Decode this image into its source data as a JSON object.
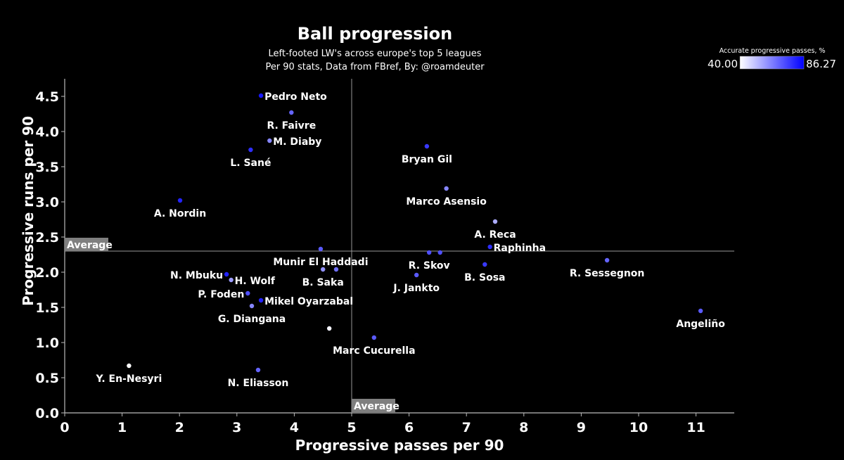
{
  "chart_data": {
    "type": "scatter",
    "title": "Ball progression",
    "subtitle_lines": [
      "Left-footed LW's across europe's top 5 leagues",
      "Per 90 stats, Data from FBref, By: @roamdeuter"
    ],
    "xlabel": "Progressive passes per 90",
    "ylabel": "Progressive runs per 90",
    "xlim": [
      -0.1,
      11.7
    ],
    "ylim": [
      -0.1,
      4.75
    ],
    "xticks": [
      "0",
      "1",
      "2",
      "3",
      "4",
      "5",
      "6",
      "7",
      "8",
      "9",
      "10",
      "11"
    ],
    "yticks": [
      "0.0",
      "0.5",
      "1.0",
      "1.5",
      "2.0",
      "2.5",
      "3.0",
      "3.5",
      "4.0",
      "4.5"
    ],
    "grid": false,
    "averages": {
      "x": 5.0,
      "y": 2.3,
      "label": "Average"
    },
    "colorbar": {
      "label": "Accurate progressive passes, %",
      "min": 40.0,
      "max": 86.27,
      "min_label": "40.00",
      "max_label": "86.27",
      "min_color": "#ffffff",
      "max_color": "#0000ff",
      "placement": "top-right"
    },
    "points": [
      {
        "name": "Pedro Neto",
        "x": 3.42,
        "y": 4.51,
        "c": 82,
        "label": "right"
      },
      {
        "name": "R. Faivre",
        "x": 3.95,
        "y": 4.27,
        "c": 68,
        "label": "below"
      },
      {
        "name": "M. Diaby",
        "x": 3.57,
        "y": 3.87,
        "c": 62,
        "label": "right"
      },
      {
        "name": "L. Sané",
        "x": 3.24,
        "y": 3.74,
        "c": 78,
        "label": "below"
      },
      {
        "name": "A. Nordin",
        "x": 2.01,
        "y": 3.02,
        "c": 80,
        "label": "below"
      },
      {
        "name": "Munir El Haddadi",
        "x": 4.46,
        "y": 2.33,
        "c": 70,
        "label": "below"
      },
      {
        "name": "B. Saka",
        "x": 4.5,
        "y": 2.04,
        "c": 60,
        "label": "below"
      },
      {
        "name": "",
        "x": 4.73,
        "y": 2.04,
        "c": 66,
        "label": "none"
      },
      {
        "name": "N. Mbuku",
        "x": 2.82,
        "y": 1.97,
        "c": 80,
        "label": "left"
      },
      {
        "name": "H. Wolf",
        "x": 2.9,
        "y": 1.89,
        "c": 58,
        "label": "right"
      },
      {
        "name": "P. Foden",
        "x": 3.19,
        "y": 1.7,
        "c": 72,
        "label": "left"
      },
      {
        "name": "Mikel Oyarzabal",
        "x": 3.42,
        "y": 1.6,
        "c": 80,
        "label": "right"
      },
      {
        "name": "G. Diangana",
        "x": 3.26,
        "y": 1.52,
        "c": 62,
        "label": "below"
      },
      {
        "name": "",
        "x": 4.61,
        "y": 1.2,
        "c": 42,
        "label": "none"
      },
      {
        "name": "Marc Cucurella",
        "x": 5.39,
        "y": 1.07,
        "c": 70,
        "label": "below"
      },
      {
        "name": "Y. En-Nesyri",
        "x": 1.12,
        "y": 0.67,
        "c": 40,
        "label": "below"
      },
      {
        "name": "N. Eliasson",
        "x": 3.37,
        "y": 0.61,
        "c": 68,
        "label": "below"
      },
      {
        "name": "Bryan Gil",
        "x": 6.31,
        "y": 3.79,
        "c": 76,
        "label": "below"
      },
      {
        "name": "Marco Asensio",
        "x": 6.65,
        "y": 3.19,
        "c": 62,
        "label": "below"
      },
      {
        "name": "A. Reca",
        "x": 7.5,
        "y": 2.72,
        "c": 55,
        "label": "below"
      },
      {
        "name": "Raphinha",
        "x": 7.41,
        "y": 2.36,
        "c": 78,
        "label": "right"
      },
      {
        "name": "R. Skov",
        "x": 6.35,
        "y": 2.28,
        "c": 72,
        "label": "below"
      },
      {
        "name": "",
        "x": 6.54,
        "y": 2.28,
        "c": 72,
        "label": "none"
      },
      {
        "name": "J. Jankto",
        "x": 6.13,
        "y": 1.96,
        "c": 70,
        "label": "below"
      },
      {
        "name": "B. Sosa",
        "x": 7.32,
        "y": 2.11,
        "c": 76,
        "label": "below"
      },
      {
        "name": "R. Sessegnon",
        "x": 9.45,
        "y": 2.17,
        "c": 68,
        "label": "below"
      },
      {
        "name": "Angeliño",
        "x": 11.08,
        "y": 1.45,
        "c": 70,
        "label": "below"
      }
    ]
  }
}
